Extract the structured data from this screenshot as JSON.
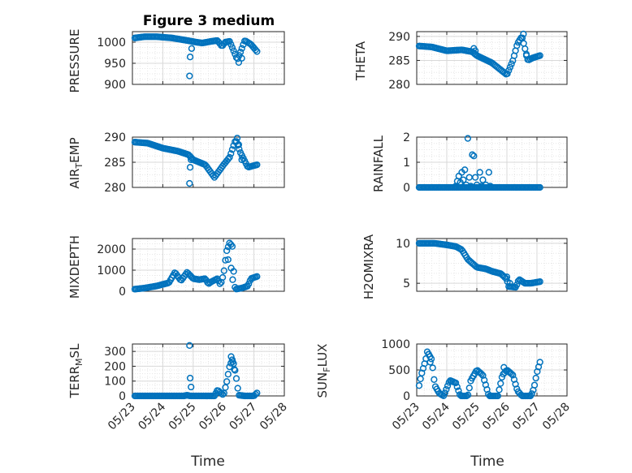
{
  "figure_title": "Figure 3 medium",
  "time_axis": {
    "label": "Time",
    "ticks": [
      "05/23",
      "05/24",
      "05/25",
      "05/26",
      "05/27",
      "05/28"
    ],
    "range_days": [
      0,
      5
    ],
    "data_start_day": 0.08,
    "data_end_day": 4.1
  },
  "marker_color": "#0072BD",
  "chart_data": [
    {
      "type": "scatter",
      "ylabel": "PRESSURE",
      "ylim": [
        900,
        1025
      ],
      "yticks": [
        900,
        950,
        1000
      ],
      "y_tick_labels": [
        "900",
        "950",
        "1000"
      ],
      "knots": [
        [
          0.08,
          1010
        ],
        [
          0.4,
          1013
        ],
        [
          0.8,
          1013
        ],
        [
          1.3,
          1010
        ],
        [
          1.8,
          1004
        ],
        [
          2.1,
          1000
        ],
        [
          2.3,
          998
        ],
        [
          2.6,
          1002
        ],
        [
          2.8,
          1004
        ],
        [
          2.95,
          990
        ],
        [
          3.05,
          1000
        ],
        [
          3.2,
          1002
        ],
        [
          3.4,
          968
        ],
        [
          3.45,
          958
        ],
        [
          3.55,
          975
        ],
        [
          3.7,
          1004
        ],
        [
          3.9,
          995
        ],
        [
          4.1,
          978
        ]
      ],
      "extra_points": [
        [
          1.88,
          920
        ],
        [
          1.9,
          965
        ],
        [
          1.95,
          985
        ],
        [
          3.5,
          952
        ],
        [
          3.6,
          962
        ]
      ]
    },
    {
      "type": "scatter",
      "ylabel": "THETA",
      "ylim": [
        280,
        291
      ],
      "yticks": [
        280,
        285,
        290
      ],
      "y_tick_labels": [
        "280",
        "285",
        "290"
      ],
      "knots": [
        [
          0.08,
          288
        ],
        [
          0.5,
          287.8
        ],
        [
          1.0,
          287
        ],
        [
          1.5,
          287.2
        ],
        [
          1.85,
          286.8
        ],
        [
          2.0,
          286
        ],
        [
          2.5,
          284.5
        ],
        [
          2.9,
          282.5
        ],
        [
          3.0,
          282
        ],
        [
          3.2,
          285
        ],
        [
          3.35,
          288.5
        ],
        [
          3.5,
          290
        ],
        [
          3.7,
          285
        ],
        [
          3.85,
          285.5
        ],
        [
          4.1,
          286
        ]
      ],
      "extra_points": [
        [
          1.9,
          287.5
        ],
        [
          1.95,
          287
        ],
        [
          3.55,
          290.5
        ],
        [
          3.65,
          286
        ]
      ]
    },
    {
      "type": "scatter",
      "ylabel": "AIR_TEMP",
      "ylim": [
        280,
        290
      ],
      "yticks": [
        280,
        285,
        290
      ],
      "y_tick_labels": [
        "280",
        "285",
        "290"
      ],
      "knots": [
        [
          0.08,
          289
        ],
        [
          0.5,
          288.8
        ],
        [
          1.0,
          287.8
        ],
        [
          1.5,
          287.2
        ],
        [
          1.85,
          286.5
        ],
        [
          2.0,
          285.5
        ],
        [
          2.4,
          284.5
        ],
        [
          2.7,
          282
        ],
        [
          3.0,
          284.5
        ],
        [
          3.2,
          286
        ],
        [
          3.4,
          289.5
        ],
        [
          3.55,
          287
        ],
        [
          3.8,
          284
        ],
        [
          4.1,
          284.5
        ]
      ],
      "extra_points": [
        [
          1.88,
          280.8
        ],
        [
          1.9,
          284
        ],
        [
          1.93,
          285.5
        ],
        [
          3.45,
          289.8
        ],
        [
          3.5,
          288.5
        ],
        [
          3.6,
          285.5
        ]
      ]
    },
    {
      "type": "scatter",
      "ylabel": "RAINFALL",
      "ylim": [
        0,
        2
      ],
      "yticks": [
        0,
        1,
        2
      ],
      "y_tick_labels": [
        "0",
        "1",
        "2"
      ],
      "knots": [
        [
          0.08,
          0
        ],
        [
          4.1,
          0
        ]
      ],
      "extra_points": [
        [
          1.3,
          0.05
        ],
        [
          1.35,
          0.25
        ],
        [
          1.4,
          0.45
        ],
        [
          1.45,
          0.2
        ],
        [
          1.5,
          0.6
        ],
        [
          1.55,
          0.3
        ],
        [
          1.6,
          0.7
        ],
        [
          1.65,
          0.1
        ],
        [
          1.7,
          1.95
        ],
        [
          1.75,
          0.4
        ],
        [
          1.8,
          0.05
        ],
        [
          1.85,
          1.3
        ],
        [
          1.9,
          1.25
        ],
        [
          1.95,
          0.4
        ],
        [
          2.0,
          0.1
        ],
        [
          2.1,
          0.6
        ],
        [
          2.15,
          0.05
        ],
        [
          2.2,
          0.3
        ],
        [
          2.3,
          0.1
        ],
        [
          2.4,
          0.6
        ],
        [
          2.45,
          0.05
        ]
      ]
    },
    {
      "type": "scatter",
      "ylabel": "MIXDEPTH",
      "ylim": [
        0,
        2500
      ],
      "yticks": [
        0,
        1000,
        2000
      ],
      "y_tick_labels": [
        "0",
        "1000",
        "2000"
      ],
      "knots": [
        [
          0.08,
          100
        ],
        [
          0.4,
          150
        ],
        [
          0.8,
          250
        ],
        [
          1.2,
          400
        ],
        [
          1.4,
          900
        ],
        [
          1.5,
          700
        ],
        [
          1.6,
          500
        ],
        [
          1.8,
          900
        ],
        [
          2.0,
          600
        ],
        [
          2.2,
          550
        ],
        [
          2.4,
          600
        ],
        [
          2.5,
          350
        ],
        [
          2.6,
          450
        ],
        [
          2.8,
          600
        ],
        [
          2.9,
          300
        ],
        [
          3.0,
          800
        ],
        [
          3.1,
          1900
        ],
        [
          3.2,
          2300
        ],
        [
          3.3,
          2100
        ],
        [
          3.35,
          300
        ],
        [
          3.4,
          100
        ],
        [
          3.6,
          150
        ],
        [
          3.8,
          250
        ],
        [
          3.9,
          600
        ],
        [
          4.1,
          700
        ]
      ],
      "extra_points": [
        [
          3.25,
          1100
        ],
        [
          3.3,
          550
        ],
        [
          3.15,
          1500
        ]
      ]
    },
    {
      "type": "scatter",
      "ylabel": "H2OMIXRA",
      "ylim": [
        4,
        10.6
      ],
      "yticks": [
        5,
        10
      ],
      "y_tick_labels": [
        "5",
        "10"
      ],
      "knots": [
        [
          0.08,
          10
        ],
        [
          0.6,
          10
        ],
        [
          1.0,
          9.8
        ],
        [
          1.3,
          9.6
        ],
        [
          1.5,
          9.2
        ],
        [
          1.7,
          8
        ],
        [
          2.0,
          7
        ],
        [
          2.3,
          6.8
        ],
        [
          2.5,
          6.5
        ],
        [
          2.8,
          6.2
        ],
        [
          3.0,
          5.5
        ],
        [
          3.05,
          4.6
        ],
        [
          3.3,
          4.5
        ],
        [
          3.4,
          5.5
        ],
        [
          3.6,
          5
        ],
        [
          3.8,
          5
        ],
        [
          4.1,
          5.2
        ]
      ],
      "extra_points": [
        [
          3.0,
          5.8
        ],
        [
          3.1,
          5.0
        ]
      ]
    },
    {
      "type": "scatter",
      "ylabel": "TERR_MSL",
      "ylim": [
        0,
        350
      ],
      "yticks": [
        0,
        100,
        200,
        300
      ],
      "y_tick_labels": [
        "0",
        "100",
        "200",
        "300"
      ],
      "knots": [
        [
          0.08,
          0
        ],
        [
          1.7,
          0
        ],
        [
          1.8,
          5
        ],
        [
          1.9,
          0
        ],
        [
          2.7,
          0
        ],
        [
          2.8,
          40
        ],
        [
          3.0,
          5
        ],
        [
          3.1,
          90
        ],
        [
          3.2,
          200
        ],
        [
          3.3,
          250
        ],
        [
          3.4,
          150
        ],
        [
          3.5,
          5
        ],
        [
          3.7,
          0
        ],
        [
          4.0,
          0
        ],
        [
          4.1,
          20
        ]
      ],
      "extra_points": [
        [
          1.88,
          340
        ],
        [
          1.9,
          120
        ],
        [
          1.93,
          60
        ],
        [
          3.25,
          265
        ],
        [
          3.3,
          230
        ],
        [
          3.35,
          180
        ]
      ]
    },
    {
      "type": "scatter",
      "ylabel": "SUN_FLUX",
      "ylim": [
        0,
        1000
      ],
      "yticks": [
        0,
        500,
        1000
      ],
      "y_tick_labels": [
        "0",
        "500",
        "1000"
      ],
      "knots": [
        [
          0.08,
          200
        ],
        [
          0.15,
          400
        ],
        [
          0.3,
          700
        ],
        [
          0.35,
          850
        ],
        [
          0.5,
          700
        ],
        [
          0.6,
          200
        ],
        [
          0.75,
          50
        ],
        [
          0.9,
          0
        ],
        [
          1.0,
          150
        ],
        [
          1.1,
          300
        ],
        [
          1.3,
          250
        ],
        [
          1.45,
          0
        ],
        [
          1.7,
          0
        ],
        [
          1.8,
          300
        ],
        [
          2.0,
          500
        ],
        [
          2.2,
          400
        ],
        [
          2.4,
          0
        ],
        [
          2.7,
          0
        ],
        [
          2.85,
          400
        ],
        [
          3.0,
          500
        ],
        [
          3.2,
          400
        ],
        [
          3.35,
          100
        ],
        [
          3.5,
          0
        ],
        [
          3.8,
          0
        ],
        [
          3.9,
          150
        ],
        [
          4.0,
          450
        ],
        [
          4.1,
          650
        ]
      ],
      "extra_points": [
        [
          0.4,
          800
        ],
        [
          0.45,
          650
        ],
        [
          2.9,
          550
        ],
        [
          3.1,
          450
        ]
      ]
    }
  ]
}
